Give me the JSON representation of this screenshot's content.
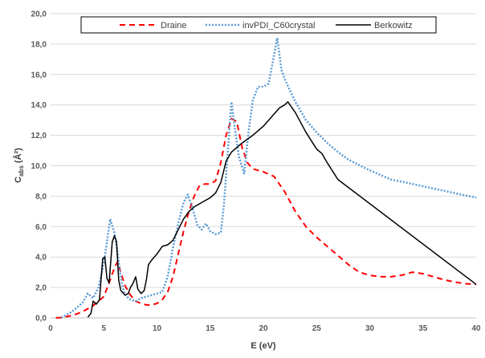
{
  "chart_data": {
    "type": "line",
    "xlabel": "E (eV)",
    "ylabel_main": "C",
    "ylabel_sub": "abs",
    "ylabel_unit": "(Å²)",
    "xlim": [
      0,
      40
    ],
    "ylim": [
      0,
      20
    ],
    "x_ticks": [
      "0",
      "5",
      "10",
      "15",
      "20",
      "25",
      "30",
      "35",
      "40"
    ],
    "y_ticks": [
      "0,0",
      "2,0",
      "4,0",
      "6,0",
      "8,0",
      "10,0",
      "12,0",
      "14,0",
      "16,0",
      "18,0",
      "20,0"
    ],
    "grid": "horizontal",
    "legend_placement": "top",
    "series": [
      {
        "name": "Draine",
        "color": "#ff0000",
        "style": "dashed",
        "points": [
          [
            0.5,
            0.0
          ],
          [
            1,
            0.02
          ],
          [
            2,
            0.15
          ],
          [
            3,
            0.4
          ],
          [
            4,
            0.8
          ],
          [
            5,
            1.4
          ],
          [
            5.5,
            2.3
          ],
          [
            6,
            3.3
          ],
          [
            6.3,
            3.7
          ],
          [
            6.6,
            3.0
          ],
          [
            7,
            2.1
          ],
          [
            7.5,
            1.5
          ],
          [
            8,
            1.1
          ],
          [
            8.5,
            0.95
          ],
          [
            9,
            0.85
          ],
          [
            9.5,
            0.85
          ],
          [
            10,
            0.95
          ],
          [
            10.5,
            1.2
          ],
          [
            11,
            1.7
          ],
          [
            11.5,
            2.7
          ],
          [
            12,
            4.2
          ],
          [
            12.5,
            5.7
          ],
          [
            13,
            7.0
          ],
          [
            13.5,
            8.0
          ],
          [
            14,
            8.7
          ],
          [
            14.5,
            8.8
          ],
          [
            15,
            8.8
          ],
          [
            15.5,
            9.0
          ],
          [
            16,
            10.2
          ],
          [
            16.5,
            12.0
          ],
          [
            17,
            13.1
          ],
          [
            17.5,
            12.9
          ],
          [
            18,
            11.2
          ],
          [
            18.5,
            10.2
          ],
          [
            19,
            9.8
          ],
          [
            20,
            9.6
          ],
          [
            21,
            9.3
          ],
          [
            22,
            8.3
          ],
          [
            23,
            7.0
          ],
          [
            24,
            6.0
          ],
          [
            25,
            5.3
          ],
          [
            26,
            4.7
          ],
          [
            27,
            4.1
          ],
          [
            28,
            3.5
          ],
          [
            29,
            3.0
          ],
          [
            30,
            2.8
          ],
          [
            31,
            2.7
          ],
          [
            32,
            2.7
          ],
          [
            33,
            2.8
          ],
          [
            34,
            3.0
          ],
          [
            35,
            2.9
          ],
          [
            36,
            2.7
          ],
          [
            37,
            2.5
          ],
          [
            38,
            2.35
          ],
          [
            39,
            2.25
          ],
          [
            40,
            2.2
          ]
        ]
      },
      {
        "name": "invPDI_C60crystal",
        "color": "#5b9bd5",
        "style": "dotted",
        "points": [
          [
            1,
            0.02
          ],
          [
            2,
            0.4
          ],
          [
            3,
            1.0
          ],
          [
            3.5,
            1.6
          ],
          [
            4,
            1.3
          ],
          [
            4.5,
            2.0
          ],
          [
            5,
            3.6
          ],
          [
            5.3,
            5.0
          ],
          [
            5.6,
            6.5
          ],
          [
            6,
            5.6
          ],
          [
            6.3,
            4.2
          ],
          [
            6.7,
            2.2
          ],
          [
            7,
            1.5
          ],
          [
            7.5,
            1.2
          ],
          [
            8,
            1.1
          ],
          [
            8.5,
            1.3
          ],
          [
            9,
            1.4
          ],
          [
            9.5,
            1.5
          ],
          [
            10,
            1.6
          ],
          [
            10.5,
            1.7
          ],
          [
            11,
            2.7
          ],
          [
            11.5,
            4.6
          ],
          [
            12,
            6.2
          ],
          [
            12.5,
            7.6
          ],
          [
            12.9,
            8.1
          ],
          [
            13.3,
            7.3
          ],
          [
            13.8,
            6.1
          ],
          [
            14.2,
            5.8
          ],
          [
            14.6,
            6.2
          ],
          [
            15,
            5.7
          ],
          [
            15.5,
            5.5
          ],
          [
            16,
            5.6
          ],
          [
            16.3,
            7.5
          ],
          [
            16.7,
            11.4
          ],
          [
            17,
            14.2
          ],
          [
            17.3,
            12.6
          ],
          [
            17.7,
            10.6
          ],
          [
            18.2,
            9.5
          ],
          [
            18.6,
            12.2
          ],
          [
            19,
            14.3
          ],
          [
            19.5,
            15.2
          ],
          [
            20,
            15.2
          ],
          [
            20.5,
            15.4
          ],
          [
            21,
            17.3
          ],
          [
            21.3,
            18.4
          ],
          [
            21.7,
            16.3
          ],
          [
            22,
            15.7
          ],
          [
            23,
            14.2
          ],
          [
            24,
            13.0
          ],
          [
            25,
            12.2
          ],
          [
            26,
            11.5
          ],
          [
            27,
            10.9
          ],
          [
            28,
            10.4
          ],
          [
            30,
            9.7
          ],
          [
            32,
            9.1
          ],
          [
            34,
            8.8
          ],
          [
            36,
            8.5
          ],
          [
            38,
            8.2
          ],
          [
            40,
            7.9
          ]
        ]
      },
      {
        "name": "Berkowitz",
        "color": "#000000",
        "style": "solid",
        "points": [
          [
            3.5,
            0.05
          ],
          [
            3.8,
            0.3
          ],
          [
            4.0,
            1.1
          ],
          [
            4.3,
            0.9
          ],
          [
            4.6,
            1.2
          ],
          [
            4.9,
            3.9
          ],
          [
            5.1,
            4.0
          ],
          [
            5.3,
            2.6
          ],
          [
            5.5,
            2.3
          ],
          [
            5.8,
            5.0
          ],
          [
            6.0,
            5.4
          ],
          [
            6.2,
            5.0
          ],
          [
            6.4,
            2.5
          ],
          [
            6.6,
            1.8
          ],
          [
            7.0,
            1.5
          ],
          [
            7.3,
            1.6
          ],
          [
            7.5,
            2.0
          ],
          [
            7.7,
            2.2
          ],
          [
            8.0,
            2.7
          ],
          [
            8.2,
            1.9
          ],
          [
            8.5,
            1.6
          ],
          [
            8.8,
            1.8
          ],
          [
            9.0,
            2.5
          ],
          [
            9.2,
            3.5
          ],
          [
            9.5,
            3.8
          ],
          [
            10,
            4.2
          ],
          [
            10.5,
            4.7
          ],
          [
            11,
            4.8
          ],
          [
            11.5,
            5.1
          ],
          [
            12,
            5.8
          ],
          [
            12.5,
            6.5
          ],
          [
            13,
            7.0
          ],
          [
            13.5,
            7.3
          ],
          [
            14,
            7.5
          ],
          [
            14.5,
            7.7
          ],
          [
            15,
            7.9
          ],
          [
            15.5,
            8.2
          ],
          [
            16,
            8.9
          ],
          [
            16.5,
            10.3
          ],
          [
            17,
            10.9
          ],
          [
            18,
            11.5
          ],
          [
            19,
            12.0
          ],
          [
            20,
            12.6
          ],
          [
            21,
            13.4
          ],
          [
            21.5,
            13.8
          ],
          [
            22,
            14.0
          ],
          [
            22.3,
            14.2
          ],
          [
            23,
            13.5
          ],
          [
            24,
            12.2
          ],
          [
            25,
            11.1
          ],
          [
            25.5,
            10.8
          ],
          [
            26,
            10.2
          ],
          [
            27,
            9.1
          ],
          [
            40,
            2.2
          ]
        ]
      }
    ]
  }
}
